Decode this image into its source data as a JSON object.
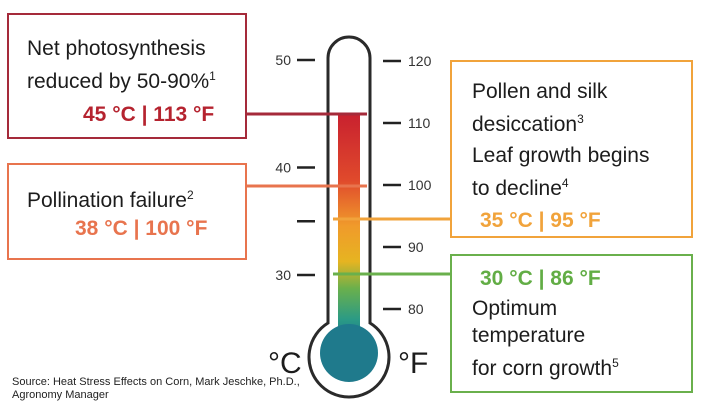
{
  "boxes": {
    "red": {
      "line1": "Net photosynthesis",
      "line2": "reduced by 50-90%",
      "sup": "1",
      "temp": "45 °C | 113 °F",
      "color": "#b5232f"
    },
    "coral": {
      "line1": "Pollination failure",
      "sup": "2",
      "temp": "38 °C | 100 °F",
      "color": "#e8744e"
    },
    "orange": {
      "line1": "Pollen and silk",
      "line2": "desiccation",
      "sup2": "3",
      "line3": "Leaf growth begins",
      "line4": "to decline",
      "sup4": "4",
      "temp": "35 °C | 95 °F",
      "color": "#f1a33b"
    },
    "green": {
      "temp": "30 °C | 86 °F",
      "line1": "Optimum",
      "line2": "temperature",
      "line3": "for corn growth",
      "sup3": "5",
      "color": "#62ad45"
    }
  },
  "thermometer": {
    "celsius_ticks": [
      {
        "label": "50",
        "value": 50
      },
      {
        "label": "40",
        "value": 40
      },
      {
        "label": "",
        "value": 35
      },
      {
        "label": "30",
        "value": 30
      }
    ],
    "fahrenheit_ticks": [
      {
        "label": "120",
        "value": 120
      },
      {
        "label": "110",
        "value": 110
      },
      {
        "label": "100",
        "value": 100
      },
      {
        "label": "90",
        "value": 90
      },
      {
        "label": "80",
        "value": 80
      }
    ],
    "celsius_unit": "°C",
    "fahrenheit_unit": "°F",
    "bulb_color": "#1f7a8c"
  },
  "source": "Source:  Heat Stress Effects on Corn, Mark Jeschke, Ph.D., Agronomy Manager"
}
